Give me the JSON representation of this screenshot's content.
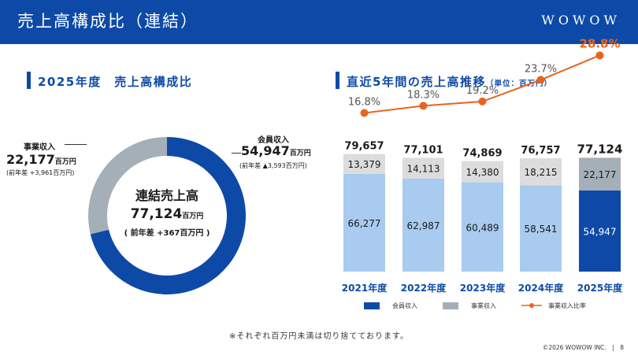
{
  "header": {
    "title": "売上高構成比（連結）",
    "logo": "WOWOW"
  },
  "left_section": {
    "title": "2025年度　売上高構成比",
    "center": {
      "title": "連結売上高",
      "value": "77,124",
      "unit": "百万円",
      "diff": "( 前年差 +367百万円 )"
    },
    "members": {
      "label": "会員収入",
      "value": "54,947",
      "unit": "百万円",
      "diff": "(前年差 ▲3,593百万円)"
    },
    "business": {
      "label": "事業収入",
      "value": "22,177",
      "unit": "百万円",
      "diff": "(前年差 +3,961百万円)"
    }
  },
  "right_section": {
    "title": "直近5年間の売上高推移",
    "unit_note": "（単位：百万円）"
  },
  "chart_data": [
    {
      "type": "pie",
      "labels": [
        "会員収入",
        "事業収入"
      ],
      "values": [
        54947,
        22177
      ],
      "colors": [
        "#0d4aa8",
        "#a5afb8"
      ],
      "donut": true
    },
    {
      "type": "bar",
      "stacked": true,
      "categories": [
        "2021年度",
        "2022年度",
        "2023年度",
        "2024年度",
        "2025年度"
      ],
      "series": [
        {
          "name": "会員収入",
          "values": [
            66277,
            62987,
            60489,
            58541,
            54947
          ],
          "labels": [
            "66,277",
            "62,987",
            "60,489",
            "58,541",
            "54,947"
          ],
          "colors": [
            "#a8cbef",
            "#a8cbef",
            "#a8cbef",
            "#a8cbef",
            "#0d4aa8"
          ]
        },
        {
          "name": "事業収入",
          "values": [
            13379,
            14113,
            14380,
            18215,
            22177
          ],
          "labels": [
            "13,379",
            "14,113",
            "14,380",
            "18,215",
            "22,177"
          ],
          "colors": [
            "#dcdcdc",
            "#dcdcdc",
            "#dcdcdc",
            "#dcdcdc",
            "#a5afb8"
          ]
        }
      ],
      "totals": [
        "79,657",
        "77,101",
        "74,869",
        "76,757",
        "77,124"
      ],
      "line": {
        "name": "事業収入比率",
        "values": [
          16.8,
          18.3,
          19.2,
          23.7,
          28.8
        ],
        "labels": [
          "16.8%",
          "18.3%",
          "19.2%",
          "23.7%",
          "28.8%"
        ],
        "color": "#e8641e"
      },
      "legend": {
        "members": "会員収入",
        "business": "事業収入",
        "ratio": "事業収入比率",
        "position": "bottom"
      }
    }
  ],
  "footnote": "※それぞれ百万円未満は切り捨てております。",
  "copyright": "©2026 WOWOW INC.",
  "page_number": "8",
  "colors": {
    "brand": "#0d4aa8",
    "orange": "#e8641e"
  }
}
